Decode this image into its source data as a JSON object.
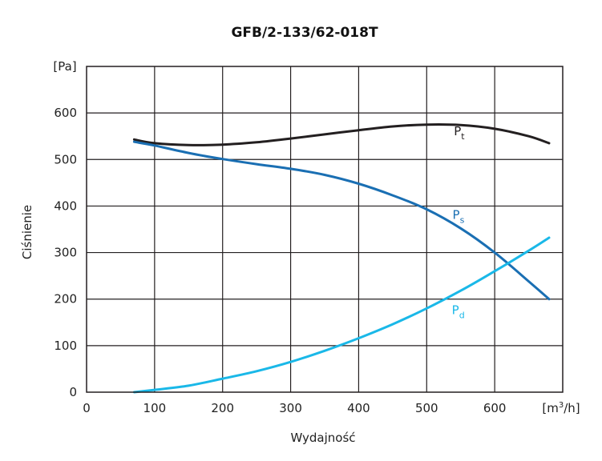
{
  "chart_data": {
    "type": "line",
    "title": "GFB/2-133/62-018T",
    "xlabel": "Wydajność",
    "ylabel": "Ciśnienie",
    "x_unit": {
      "pre": "[m",
      "sup": "3",
      "post": "/h]"
    },
    "y_unit": "[Pa]",
    "xlim": [
      0,
      700
    ],
    "ylim": [
      0,
      700
    ],
    "x_ticks": [
      0,
      100,
      200,
      300,
      400,
      500,
      600
    ],
    "y_ticks": [
      0,
      100,
      200,
      300,
      400,
      500,
      600
    ],
    "grid": true,
    "series": [
      {
        "name": "Pt",
        "label_main": "P",
        "label_sub": "t",
        "color": "#231f20",
        "label_at": [
          540,
          552
        ],
        "points": [
          [
            70,
            543
          ],
          [
            100,
            535
          ],
          [
            150,
            531
          ],
          [
            200,
            532
          ],
          [
            250,
            537
          ],
          [
            300,
            545
          ],
          [
            350,
            554
          ],
          [
            400,
            563
          ],
          [
            450,
            571
          ],
          [
            500,
            575
          ],
          [
            550,
            574
          ],
          [
            600,
            566
          ],
          [
            650,
            550
          ],
          [
            680,
            535
          ]
        ]
      },
      {
        "name": "Ps",
        "label_main": "P",
        "label_sub": "s",
        "color": "#1a6fb3",
        "label_at": [
          538,
          372
        ],
        "points": [
          [
            70,
            538
          ],
          [
            100,
            530
          ],
          [
            150,
            514
          ],
          [
            200,
            501
          ],
          [
            250,
            490
          ],
          [
            300,
            480
          ],
          [
            350,
            467
          ],
          [
            400,
            448
          ],
          [
            450,
            423
          ],
          [
            500,
            393
          ],
          [
            550,
            352
          ],
          [
            600,
            300
          ],
          [
            650,
            238
          ],
          [
            680,
            200
          ]
        ]
      },
      {
        "name": "Pd",
        "label_main": "P",
        "label_sub": "d",
        "color": "#1ab8e8",
        "label_at": [
          537,
          168
        ],
        "points": [
          [
            70,
            0
          ],
          [
            100,
            5
          ],
          [
            150,
            14
          ],
          [
            200,
            29
          ],
          [
            250,
            45
          ],
          [
            300,
            65
          ],
          [
            350,
            89
          ],
          [
            400,
            116
          ],
          [
            450,
            146
          ],
          [
            500,
            180
          ],
          [
            550,
            218
          ],
          [
            600,
            260
          ],
          [
            650,
            304
          ],
          [
            680,
            332
          ]
        ]
      }
    ]
  }
}
